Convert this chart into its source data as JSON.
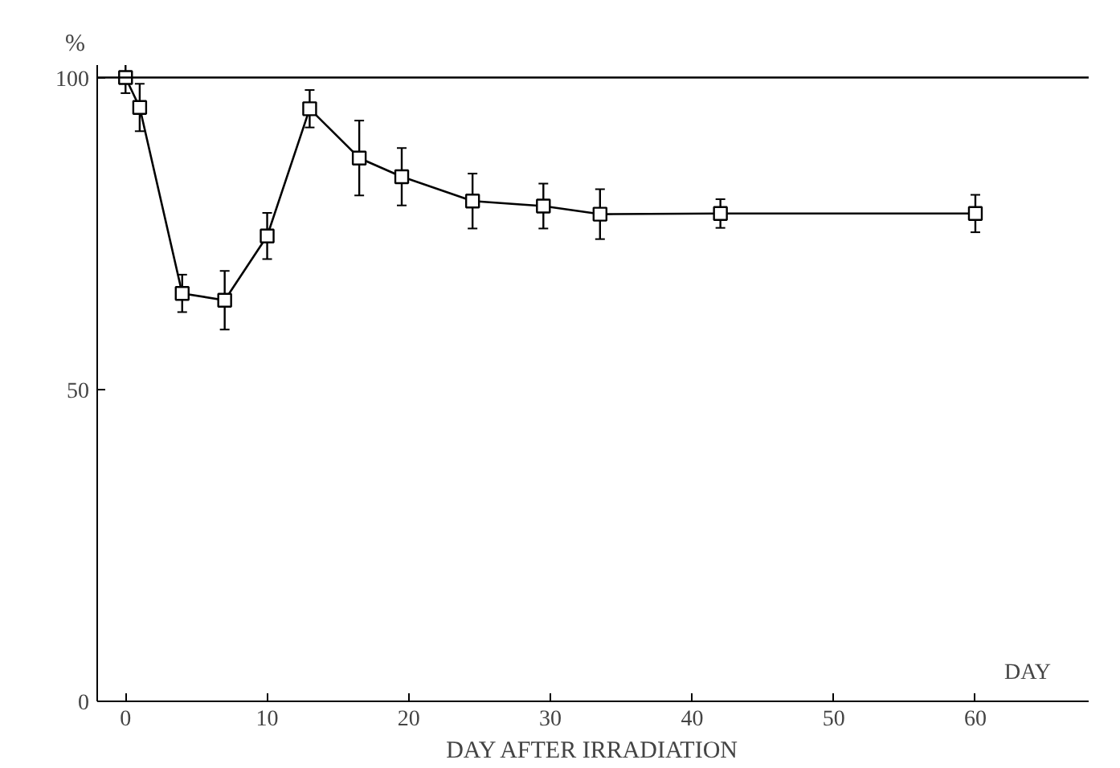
{
  "chart_data": {
    "type": "line",
    "xlabel": "DAY AFTER IRRADIATION",
    "ylabel": "%",
    "x": [
      0,
      1,
      4,
      7,
      10,
      13,
      16.5,
      19.5,
      24.5,
      29.5,
      33.5,
      42,
      60
    ],
    "values": [
      100,
      95.2,
      65.4,
      64.3,
      74.6,
      95,
      87.1,
      84.1,
      80.2,
      79.4,
      78.1,
      78.2,
      78.2
    ],
    "errors": [
      2.5,
      3.8,
      3,
      4.7,
      3.7,
      3,
      6,
      4.6,
      4.4,
      3.6,
      4,
      2.3,
      3
    ],
    "color": "#000000",
    "marker": "square",
    "line_style": "solid",
    "xlim": [
      -2,
      68
    ],
    "xticks": [
      0,
      10,
      20,
      30,
      40,
      50,
      60
    ],
    "ylim": [
      0,
      102
    ],
    "yticks": [
      0,
      50,
      100
    ],
    "ref_lines": [
      {
        "axis": "y",
        "value": 100,
        "label": null
      }
    ],
    "annotations": [
      "DAY"
    ],
    "grid": false
  }
}
